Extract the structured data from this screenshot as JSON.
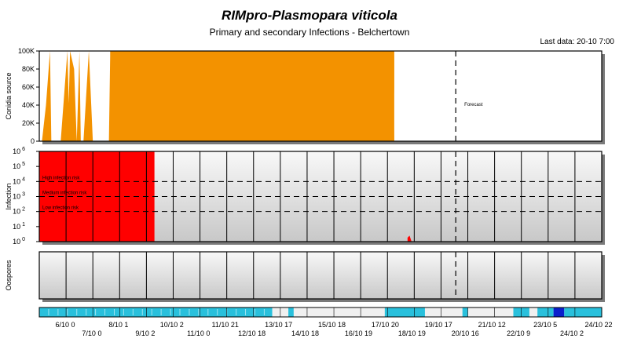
{
  "header": {
    "title": "RIMpro-Plasmopara viticola",
    "subtitle": "Primary and secondary Infections - Belchertown",
    "last_data": "Last data: 20-10 7:00"
  },
  "chart_data": [
    {
      "type": "area",
      "panel": "conidia",
      "ylabel": "Conidia source",
      "ylim": [
        0,
        100000
      ],
      "y_ticks": [
        "0",
        "20K",
        "40K",
        "60K",
        "80K",
        "100K"
      ],
      "forecast_label": "Forecast",
      "forecast_day": 15.55,
      "color": "#f39200",
      "x_unit": "days since 6/10 0",
      "x": [
        0,
        0.1,
        0.25,
        0.4,
        0.45,
        0.8,
        1.05,
        1.1,
        1.15,
        1.3,
        1.4,
        1.5,
        1.55,
        1.65,
        1.85,
        2.0,
        2.05,
        2.6,
        2.65,
        13.2,
        13.25,
        13.3,
        14.0,
        14.5,
        14.55,
        15.0
      ],
      "y": [
        0,
        0,
        40000,
        100000,
        0,
        0,
        100000,
        42000,
        100000,
        80000,
        0,
        100000,
        0,
        0,
        100000,
        0,
        0,
        0,
        100000,
        100000,
        0,
        0,
        0,
        0,
        0,
        0
      ]
    },
    {
      "type": "area",
      "panel": "infection",
      "ylabel": "Infection",
      "y_scale": "log",
      "ylim": [
        1,
        1000000
      ],
      "y_ticks": [
        "10 0",
        "10 1",
        "10 2",
        "10 3",
        "10 4",
        "10 5",
        "10 6"
      ],
      "thresholds": [
        {
          "label": "High infection risk",
          "value": 10000
        },
        {
          "label": "Medium infection risk",
          "value": 1000
        },
        {
          "label": "Low infection risk",
          "value": 100
        }
      ],
      "events": [
        {
          "x_start": 0,
          "x_end": 4.3,
          "value": 1000000,
          "color": "#ff0000"
        },
        {
          "x_start": 13.75,
          "x_end": 13.9,
          "value": 2.5,
          "color": "#ff0000"
        }
      ]
    },
    {
      "type": "bar",
      "panel": "oospores",
      "ylabel": "Oospores",
      "values": []
    },
    {
      "type": "heatmap",
      "panel": "weather-strip",
      "segments": [
        {
          "x_start": 0,
          "x_end": 8.7,
          "color": "#29c0dc"
        },
        {
          "x_start": 8.7,
          "x_end": 9.3,
          "color": "#f0f0f0"
        },
        {
          "x_start": 9.3,
          "x_end": 9.5,
          "color": "#29c0dc"
        },
        {
          "x_start": 9.5,
          "x_end": 12.9,
          "color": "#f0f0f0"
        },
        {
          "x_start": 12.9,
          "x_end": 14.4,
          "color": "#29c0dc"
        },
        {
          "x_start": 14.4,
          "x_end": 15.8,
          "color": "#f0f0f0"
        },
        {
          "x_start": 15.8,
          "x_end": 16.0,
          "color": "#29c0dc"
        },
        {
          "x_start": 16.0,
          "x_end": 17.7,
          "color": "#f0f0f0"
        },
        {
          "x_start": 17.7,
          "x_end": 18.3,
          "color": "#29c0dc"
        },
        {
          "x_start": 18.3,
          "x_end": 18.6,
          "color": "#f0f0f0"
        },
        {
          "x_start": 18.6,
          "x_end": 19.2,
          "color": "#29c0dc"
        },
        {
          "x_start": 19.2,
          "x_end": 19.6,
          "color": "#0a1fcc"
        },
        {
          "x_start": 19.6,
          "x_end": 21,
          "color": "#29c0dc"
        }
      ],
      "x_tick_labels_top": [
        "6/10 0",
        "8/10 1",
        "10/10 2",
        "11/10 21",
        "13/10 17",
        "15/10 18",
        "17/10 20",
        "19/10 17",
        "21/10 12",
        "23/10 5",
        "24/10 22"
      ],
      "x_tick_labels_bottom": [
        "7/10 0",
        "9/10 2",
        "11/10 0",
        "12/10 18",
        "14/10 18",
        "16/10 19",
        "18/10 19",
        "20/10 16",
        "22/10 9",
        "24/10 2"
      ]
    }
  ]
}
